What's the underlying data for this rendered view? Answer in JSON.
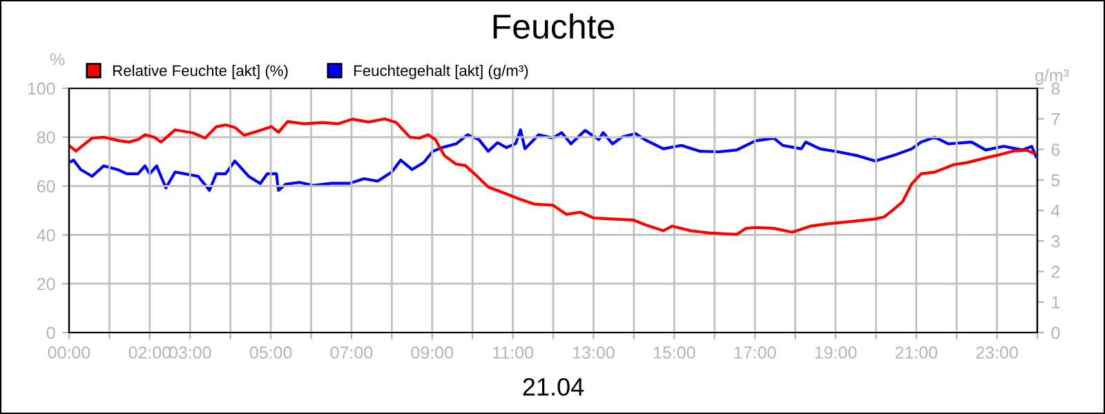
{
  "chart_data": {
    "type": "line",
    "title": "Feuchte",
    "xlabel": "21.04",
    "ylabel": "%",
    "y2label": "g/m³",
    "xlim": [
      0,
      24
    ],
    "ylim": [
      0,
      100
    ],
    "yticks": [
      0,
      20,
      40,
      60,
      80,
      100
    ],
    "y2lim": [
      0,
      8
    ],
    "y2ticks": [
      0,
      1,
      2,
      3,
      4,
      5,
      6,
      7,
      8
    ],
    "xticks": [
      {
        "value": 0,
        "label": "00:00"
      },
      {
        "value": 1,
        "label": null
      },
      {
        "value": 2,
        "label": "02:00"
      },
      {
        "value": 3,
        "label": "03:00"
      },
      {
        "value": 4,
        "label": null
      },
      {
        "value": 5,
        "label": "05:00"
      },
      {
        "value": 6,
        "label": null
      },
      {
        "value": 7,
        "label": "07:00"
      },
      {
        "value": 8,
        "label": null
      },
      {
        "value": 9,
        "label": "09:00"
      },
      {
        "value": 10,
        "label": null
      },
      {
        "value": 11,
        "label": "11:00"
      },
      {
        "value": 12,
        "label": null
      },
      {
        "value": 13,
        "label": "13:00"
      },
      {
        "value": 14,
        "label": null
      },
      {
        "value": 15,
        "label": "15:00"
      },
      {
        "value": 16,
        "label": null
      },
      {
        "value": 17,
        "label": "17:00"
      },
      {
        "value": 18,
        "label": null
      },
      {
        "value": 19,
        "label": "19:00"
      },
      {
        "value": 20,
        "label": null
      },
      {
        "value": 21,
        "label": "21:00"
      },
      {
        "value": 22,
        "label": null
      },
      {
        "value": 23,
        "label": "23:00"
      },
      {
        "value": 24,
        "label": null
      }
    ],
    "grid": true,
    "legend": "top left",
    "marker": "none",
    "line_style": "solid",
    "series": [
      {
        "name": "Relative Feuchte [akt] (%)",
        "color": "#ff0000",
        "x": [
          0.0,
          0.17,
          0.57,
          0.86,
          1.26,
          1.48,
          1.71,
          1.88,
          2.11,
          2.28,
          2.63,
          3.08,
          3.37,
          3.65,
          3.88,
          4.11,
          4.34,
          4.68,
          5.02,
          5.19,
          5.42,
          5.82,
          6.28,
          6.68,
          7.02,
          7.42,
          7.82,
          8.11,
          8.45,
          8.68,
          8.9,
          9.08,
          9.3,
          9.59,
          9.82,
          10.05,
          10.39,
          10.84,
          11.19,
          11.53,
          11.99,
          12.33,
          12.67,
          13.01,
          13.47,
          13.98,
          14.27,
          14.73,
          14.95,
          15.41,
          15.87,
          16.32,
          16.55,
          16.78,
          17.01,
          17.47,
          17.92,
          18.38,
          18.84,
          19.41,
          19.98,
          20.21,
          20.43,
          20.66,
          20.89,
          21.12,
          21.46,
          21.92,
          22.26,
          22.72,
          23.06,
          23.4,
          23.74,
          23.91
        ],
        "values": [
          76.6,
          74.3,
          79.6,
          80,
          78.5,
          78,
          79,
          81,
          80,
          78,
          83,
          81.7,
          79.6,
          84.3,
          85,
          84,
          80.8,
          82.5,
          84.3,
          82,
          86.4,
          85.5,
          86,
          85.5,
          87.4,
          86.2,
          87.5,
          86,
          80,
          79.6,
          81,
          79,
          72.5,
          69,
          68.4,
          65,
          59.6,
          56.8,
          54.5,
          52.6,
          52.2,
          48.4,
          49.3,
          46.9,
          46.5,
          46.1,
          44.2,
          41.7,
          43.6,
          41.7,
          40.8,
          40.4,
          40.2,
          42.7,
          43,
          42.7,
          41.1,
          43.6,
          44.6,
          45.5,
          46.5,
          47.4,
          50.3,
          53.6,
          61,
          65,
          65.7,
          68.7,
          69.6,
          71.5,
          72.8,
          74.3,
          74.7,
          73.4
        ]
      },
      {
        "name": "Feuchtegehalt [akt] (g/m³)",
        "color": "#0000ff",
        "axis": "y2",
        "x": [
          0.0,
          0.11,
          0.29,
          0.57,
          0.86,
          1.2,
          1.43,
          1.71,
          1.88,
          2.0,
          2.17,
          2.4,
          2.63,
          3.2,
          3.48,
          3.65,
          3.88,
          4.11,
          4.45,
          4.74,
          4.91,
          5.14,
          5.19,
          5.37,
          5.71,
          6.05,
          6.51,
          6.96,
          7.31,
          7.65,
          8.0,
          8.22,
          8.5,
          8.79,
          9.02,
          9.25,
          9.59,
          9.88,
          10.16,
          10.39,
          10.62,
          10.84,
          11.07,
          11.19,
          11.3,
          11.64,
          11.99,
          12.21,
          12.44,
          12.79,
          13.13,
          13.24,
          13.47,
          13.7,
          14.04,
          14.27,
          14.73,
          15.18,
          15.64,
          16.1,
          16.55,
          17.01,
          17.47,
          17.69,
          18.15,
          18.26,
          18.61,
          19.06,
          19.52,
          19.98,
          20.43,
          20.89,
          21.12,
          21.46,
          21.8,
          22.37,
          22.72,
          23.17,
          23.63,
          23.86,
          23.97
        ],
        "values": [
          5.57,
          5.65,
          5.34,
          5.12,
          5.46,
          5.34,
          5.2,
          5.2,
          5.46,
          5.2,
          5.46,
          4.74,
          5.26,
          5.12,
          4.66,
          5.2,
          5.2,
          5.62,
          5.12,
          4.88,
          5.2,
          5.2,
          4.66,
          4.86,
          4.92,
          4.82,
          4.89,
          4.89,
          5.04,
          4.96,
          5.26,
          5.65,
          5.34,
          5.57,
          5.94,
          6.06,
          6.18,
          6.48,
          6.32,
          5.94,
          6.22,
          6.06,
          6.19,
          6.64,
          6.02,
          6.48,
          6.37,
          6.55,
          6.18,
          6.62,
          6.32,
          6.55,
          6.18,
          6.4,
          6.52,
          6.32,
          6.02,
          6.13,
          5.94,
          5.92,
          5.98,
          6.28,
          6.37,
          6.13,
          6.02,
          6.24,
          6.02,
          5.92,
          5.8,
          5.62,
          5.8,
          6.02,
          6.24,
          6.4,
          6.18,
          6.24,
          5.98,
          6.1,
          5.98,
          6.1,
          5.76
        ]
      }
    ]
  }
}
